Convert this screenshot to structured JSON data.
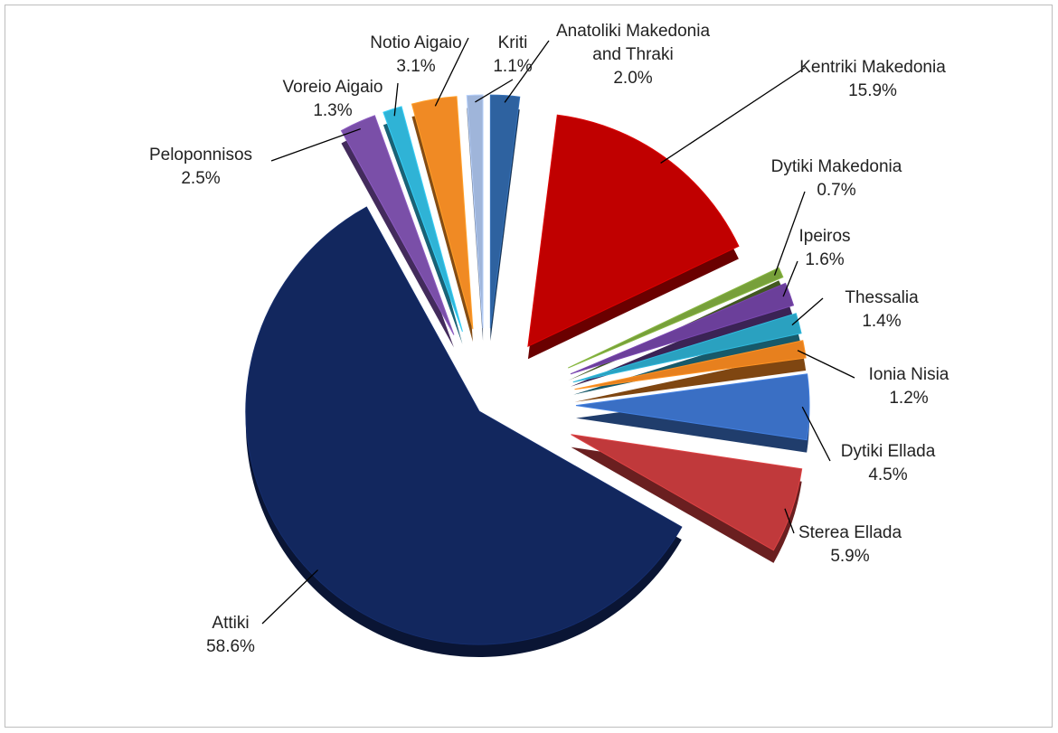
{
  "chart_data": {
    "type": "pie",
    "categories": [
      "Anatoliki Makedonia and Thraki",
      "Kentriki Makedonia",
      "Dytiki Makedonia",
      "Ipeiros",
      "Thessalia",
      "Ionia Nisia",
      "Dytiki Ellada",
      "Sterea Ellada",
      "Attiki",
      "Peloponnisos",
      "Voreio Aigaio",
      "Notio Aigaio",
      "Kriti"
    ],
    "values": [
      2.0,
      15.9,
      0.7,
      1.6,
      1.4,
      1.2,
      4.5,
      5.9,
      58.6,
      2.5,
      1.3,
      3.1,
      1.1
    ],
    "value_labels": [
      "2.0%",
      "15.9%",
      "0.7%",
      "1.6%",
      "1.4%",
      "1.2%",
      "4.5%",
      "5.9%",
      "58.6%",
      "2.5%",
      "1.3%",
      "3.1%",
      "1.1%"
    ],
    "colors": [
      "#2e62a0",
      "#c00000",
      "#77a03a",
      "#6b3f9a",
      "#2aa1c0",
      "#e7801e",
      "#3a6fc4",
      "#c0393b",
      "#12275e",
      "#7a4fa8",
      "#2fb3d6",
      "#f08a24",
      "#9fb5da"
    ]
  }
}
